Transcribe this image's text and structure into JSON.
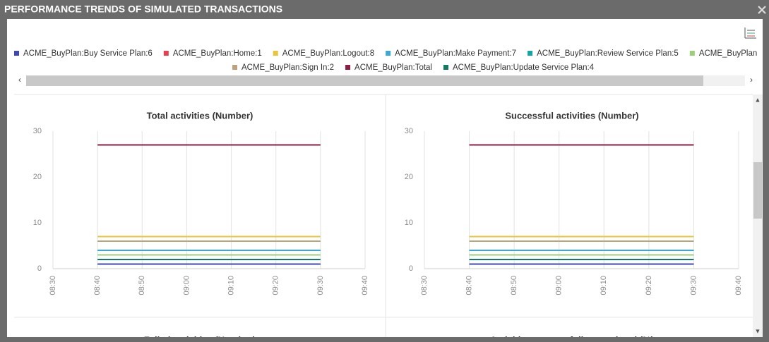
{
  "window": {
    "title": "PERFORMANCE TRENDS OF SIMULATED TRANSACTIONS"
  },
  "legend": [
    {
      "name": "ACME_BuyPlan:Buy Service Plan:6",
      "color": "#3f48b5"
    },
    {
      "name": "ACME_BuyPlan:Home:1",
      "color": "#e8404f"
    },
    {
      "name": "ACME_BuyPlan:Logout:8",
      "color": "#e8c53a"
    },
    {
      "name": "ACME_BuyPlan:Make Payment:7",
      "color": "#3aa8d8"
    },
    {
      "name": "ACME_BuyPlan:Review Service Plan:5",
      "color": "#13a6a6"
    },
    {
      "name": "ACME_BuyPlan:Select Service",
      "color": "#9bcf7a"
    },
    {
      "name": "ACME_BuyPlan:Sign In:2",
      "color": "#bfa27a"
    },
    {
      "name": "ACME_BuyPlan:Total",
      "color": "#8e1c45"
    },
    {
      "name": "ACME_BuyPlan:Update Service Plan:4",
      "color": "#137a62"
    }
  ],
  "charts": [
    {
      "type": "line",
      "title": "Total activities (Number)",
      "x": [
        "08:40",
        "09:30"
      ],
      "xticks": [
        "08:30",
        "08:40",
        "08:50",
        "09:00",
        "09:10",
        "09:20",
        "09:30",
        "09:40"
      ],
      "ylim": [
        0,
        30
      ],
      "yticks": [
        0,
        10,
        20,
        30
      ],
      "series": [
        {
          "values": [
            1,
            1
          ]
        },
        {
          "values": [
            1,
            1
          ]
        },
        {
          "values": [
            7,
            7
          ]
        },
        {
          "values": [
            4,
            4
          ]
        },
        {
          "values": [
            4,
            4
          ]
        },
        {
          "values": [
            3,
            3
          ]
        },
        {
          "values": [
            6,
            6
          ]
        },
        {
          "values": [
            27,
            27
          ]
        },
        {
          "values": [
            2,
            2
          ]
        }
      ]
    },
    {
      "type": "line",
      "title": "Successful activities (Number)",
      "x": [
        "08:40",
        "09:30"
      ],
      "xticks": [
        "08:30",
        "08:40",
        "08:50",
        "09:00",
        "09:10",
        "09:20",
        "09:30",
        "09:40"
      ],
      "ylim": [
        0,
        30
      ],
      "yticks": [
        0,
        10,
        20,
        30
      ],
      "series": [
        {
          "values": [
            1,
            1
          ]
        },
        {
          "values": [
            1,
            1
          ]
        },
        {
          "values": [
            7,
            7
          ]
        },
        {
          "values": [
            4,
            4
          ]
        },
        {
          "values": [
            4,
            4
          ]
        },
        {
          "values": [
            3,
            3
          ]
        },
        {
          "values": [
            6,
            6
          ]
        },
        {
          "values": [
            27,
            27
          ]
        },
        {
          "values": [
            2,
            2
          ]
        }
      ]
    },
    {
      "type": "line",
      "title": "Failed activities (Number)"
    },
    {
      "type": "line",
      "title": "Activities successfully completed (%)"
    }
  ]
}
